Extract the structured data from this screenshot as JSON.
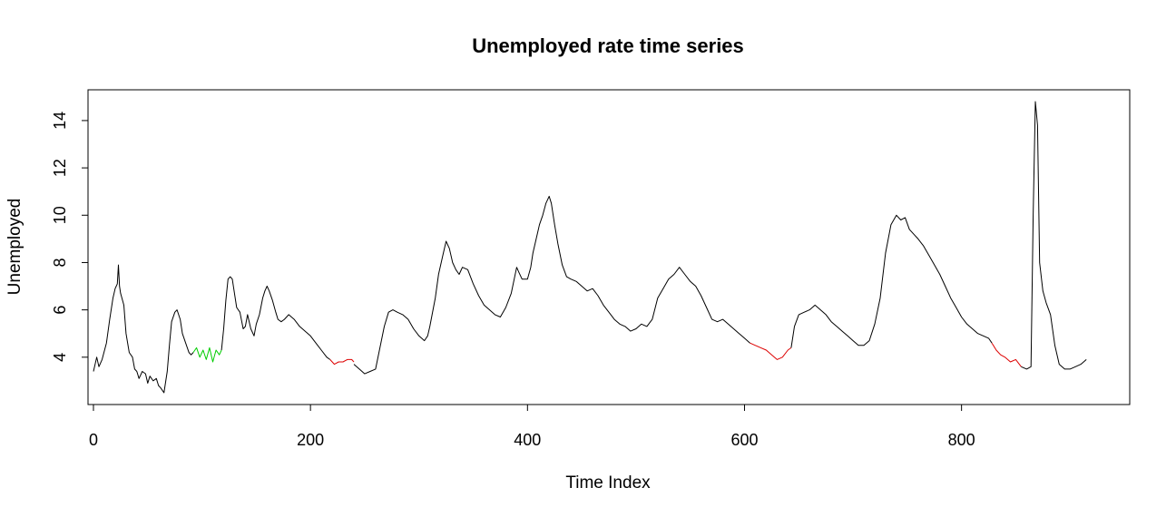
{
  "chart_data": {
    "type": "line",
    "title": "Unemployed rate time series",
    "xlabel": "Time Index",
    "ylabel": "Unemployed",
    "xlim": [
      -5,
      955
    ],
    "ylim": [
      2.0,
      15.3
    ],
    "x_ticks": [
      0,
      200,
      400,
      600,
      800
    ],
    "y_ticks": [
      4,
      6,
      8,
      10,
      12,
      14
    ],
    "grid": false,
    "legend": "none",
    "series_colors": {
      "main": "#000000",
      "green": "#00cc00",
      "red": "#dd0000"
    },
    "series": [
      {
        "color_key": "main",
        "x": [
          0,
          3,
          5,
          8,
          12,
          15,
          18,
          20,
          22,
          23,
          24,
          25,
          28,
          30,
          33,
          36,
          38,
          40,
          42,
          45,
          48,
          50,
          52,
          55,
          58,
          60,
          62,
          65,
          68,
          70,
          72,
          75,
          77,
          80,
          82,
          85,
          88,
          90,
          92
        ],
        "y": [
          3.4,
          4.0,
          3.6,
          3.9,
          4.6,
          5.6,
          6.5,
          6.9,
          7.1,
          7.9,
          7.0,
          6.7,
          6.2,
          5.0,
          4.2,
          4.0,
          3.5,
          3.4,
          3.1,
          3.4,
          3.3,
          2.9,
          3.2,
          3.0,
          3.1,
          2.8,
          2.7,
          2.5,
          3.4,
          4.5,
          5.5,
          5.9,
          6.0,
          5.6,
          5.0,
          4.6,
          4.2,
          4.1,
          4.2
        ]
      },
      {
        "color_key": "green",
        "x": [
          92,
          95,
          98,
          101,
          104,
          107,
          110,
          113,
          116,
          118
        ],
        "y": [
          4.2,
          4.4,
          4.0,
          4.3,
          3.9,
          4.4,
          3.8,
          4.3,
          4.1,
          4.3
        ]
      },
      {
        "color_key": "main",
        "x": [
          118,
          120,
          122,
          124,
          126,
          128,
          130,
          132,
          135,
          138,
          140,
          142,
          145,
          148,
          150,
          153,
          156,
          158,
          160,
          162,
          165,
          168,
          170,
          173,
          176,
          180,
          185,
          190,
          195,
          200,
          205,
          210,
          215,
          218
        ],
        "y": [
          4.3,
          5.2,
          6.4,
          7.3,
          7.4,
          7.3,
          6.7,
          6.1,
          5.9,
          5.2,
          5.3,
          5.8,
          5.2,
          4.9,
          5.4,
          5.8,
          6.5,
          6.8,
          7.0,
          6.8,
          6.4,
          5.9,
          5.6,
          5.5,
          5.6,
          5.8,
          5.6,
          5.3,
          5.1,
          4.9,
          4.6,
          4.3,
          4.0,
          3.9
        ]
      },
      {
        "color_key": "red",
        "x": [
          218,
          222,
          226,
          230,
          234,
          238,
          240
        ],
        "y": [
          3.9,
          3.7,
          3.8,
          3.8,
          3.9,
          3.9,
          3.8
        ]
      },
      {
        "color_key": "main",
        "x": [
          240,
          245,
          250,
          255,
          260,
          264,
          268,
          272,
          276,
          280,
          285,
          290,
          295,
          300,
          305,
          308,
          310,
          315,
          318,
          322,
          325,
          328,
          331,
          334,
          337,
          340,
          345,
          350,
          355,
          360,
          365,
          370,
          375,
          380,
          385,
          390,
          392,
          395,
          400,
          403,
          405,
          408,
          411,
          414,
          417,
          420,
          422,
          425,
          428,
          432,
          436,
          440,
          445,
          450,
          455,
          460,
          465,
          470,
          475,
          480,
          485,
          490,
          495,
          500,
          505,
          510,
          515,
          520,
          525,
          530,
          535,
          540,
          545,
          550,
          555,
          560,
          565,
          570,
          575,
          580,
          585,
          590,
          595,
          600,
          605
        ],
        "y": [
          3.7,
          3.5,
          3.3,
          3.4,
          3.5,
          4.4,
          5.3,
          5.9,
          6.0,
          5.9,
          5.8,
          5.6,
          5.2,
          4.9,
          4.7,
          4.9,
          5.3,
          6.5,
          7.5,
          8.3,
          8.9,
          8.6,
          8.0,
          7.7,
          7.5,
          7.8,
          7.7,
          7.1,
          6.6,
          6.2,
          6.0,
          5.8,
          5.7,
          6.1,
          6.7,
          7.8,
          7.6,
          7.3,
          7.3,
          7.8,
          8.4,
          9.0,
          9.6,
          10.0,
          10.5,
          10.8,
          10.5,
          9.6,
          8.8,
          7.9,
          7.4,
          7.3,
          7.2,
          7.0,
          6.8,
          6.9,
          6.6,
          6.2,
          5.9,
          5.6,
          5.4,
          5.3,
          5.1,
          5.2,
          5.4,
          5.3,
          5.6,
          6.5,
          6.9,
          7.3,
          7.5,
          7.8,
          7.5,
          7.2,
          7.0,
          6.6,
          6.1,
          5.6,
          5.5,
          5.6,
          5.4,
          5.2,
          5.0,
          4.8,
          4.6
        ]
      },
      {
        "color_key": "red",
        "x": [
          605,
          610,
          615,
          620,
          625,
          630,
          635,
          640,
          643
        ],
        "y": [
          4.6,
          4.5,
          4.4,
          4.3,
          4.1,
          3.9,
          4.0,
          4.3,
          4.4
        ]
      },
      {
        "color_key": "main",
        "x": [
          643,
          646,
          650,
          655,
          660,
          665,
          670,
          675,
          680,
          685,
          690,
          695,
          700,
          705,
          710,
          715,
          720,
          725,
          730,
          735,
          740,
          744,
          748,
          752,
          756,
          760,
          765,
          770,
          775,
          780,
          785,
          790,
          795,
          800,
          805,
          810,
          815,
          820,
          825,
          828
        ],
        "y": [
          4.4,
          5.3,
          5.8,
          5.9,
          6.0,
          6.2,
          6.0,
          5.8,
          5.5,
          5.3,
          5.1,
          4.9,
          4.7,
          4.5,
          4.5,
          4.7,
          5.4,
          6.5,
          8.4,
          9.6,
          10.0,
          9.8,
          9.9,
          9.4,
          9.2,
          9.0,
          8.7,
          8.3,
          7.9,
          7.5,
          7.0,
          6.5,
          6.1,
          5.7,
          5.4,
          5.2,
          5.0,
          4.9,
          4.8,
          4.6
        ]
      },
      {
        "color_key": "red",
        "x": [
          828,
          832,
          836,
          840,
          845,
          850,
          855
        ],
        "y": [
          4.6,
          4.3,
          4.1,
          4.0,
          3.8,
          3.9,
          3.6
        ]
      },
      {
        "color_key": "main",
        "x": [
          855,
          860,
          864,
          866,
          868,
          870,
          872,
          875,
          878,
          882,
          886,
          890,
          895,
          900,
          905,
          910,
          915
        ],
        "y": [
          3.6,
          3.5,
          3.6,
          10.0,
          14.8,
          13.8,
          8.0,
          6.8,
          6.3,
          5.8,
          4.5,
          3.7,
          3.5,
          3.5,
          3.6,
          3.7,
          3.9
        ]
      }
    ]
  }
}
